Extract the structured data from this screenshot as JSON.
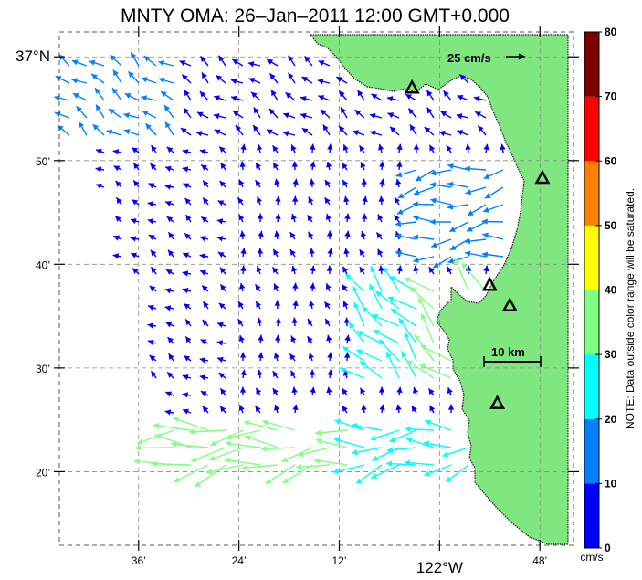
{
  "title": "MNTY OMA: 26–Jan–2011 12:00 GMT+0.000",
  "lat_labels": [
    {
      "text": "37°N",
      "lat": 37.0,
      "is_main": true
    },
    {
      "text": "50’",
      "lat": 36.8333
    },
    {
      "text": "40’",
      "lat": 36.6667
    },
    {
      "text": "30’",
      "lat": 36.5
    },
    {
      "text": "20’",
      "lat": 36.3333
    }
  ],
  "lon_labels": [
    {
      "text": "36’",
      "lon": -122.6
    },
    {
      "text": "24’",
      "lon": -122.4
    },
    {
      "text": "12’",
      "lon": -122.2
    },
    {
      "text": "122°W",
      "lon": -122.0,
      "is_main": true
    },
    {
      "text": "48’",
      "lon": -121.8
    }
  ],
  "scale_arrow_label": "25 cm/s",
  "scale_bar_label": "10 km",
  "colorbar": {
    "ticks": [
      "0",
      "10",
      "20",
      "30",
      "40",
      "50",
      "60",
      "70",
      "80"
    ],
    "colors": [
      "#0000ff",
      "#0080ff",
      "#00ffff",
      "#80ff80",
      "#ffff00",
      "#ff8000",
      "#ff0000",
      "#800000"
    ],
    "unit": "cm/s",
    "note": "NOTE: Data outside color range will be saturated."
  },
  "land_color": "#80e680",
  "stations": [
    {
      "lon": -122.055,
      "lat": 36.95
    },
    {
      "lon": -121.795,
      "lat": 36.805
    },
    {
      "lon": -121.9,
      "lat": 36.633
    },
    {
      "lon": -121.86,
      "lat": 36.6
    },
    {
      "lon": -121.885,
      "lat": 36.443
    }
  ]
}
